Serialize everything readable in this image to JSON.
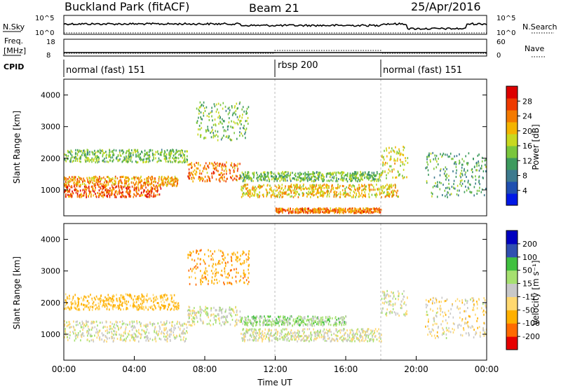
{
  "header": {
    "station": "Buckland Park (fitACF)",
    "beam": "Beam 21",
    "date": "25/Apr/2016"
  },
  "colors": {
    "power_scale": [
      "#0018e6",
      "#1f4fb0",
      "#3d7a8e",
      "#3d9a5e",
      "#7ac63d",
      "#c8d820",
      "#f4b400",
      "#f47a00",
      "#ee3a00",
      "#dd0000"
    ],
    "velocity_scale": [
      "#e60000",
      "#ff6a00",
      "#ffb000",
      "#ffd870",
      "#c8c8c8",
      "#a6e070",
      "#40c040",
      "#3050b0",
      "#0000c0"
    ]
  },
  "chart_data": [
    {
      "type": "line",
      "name": "noise-panel",
      "left_label": "N.Sky",
      "right_label": "N.Search",
      "left_ticks": [
        "10^5",
        "10^0"
      ],
      "right_ticks": [
        "10^5",
        "10^0"
      ],
      "x": [
        "00:00",
        "24:00"
      ],
      "sky_level": [
        0.45,
        0.78
      ]
    },
    {
      "type": "line",
      "name": "freq-panel",
      "left_label": "Freq.",
      "left_unit": "[MHz]",
      "right_label": "Nave",
      "left_ticks": [
        18,
        8
      ],
      "right_ticks": [
        60,
        0
      ]
    },
    {
      "type": "table",
      "name": "cpid-panel",
      "label": "CPID",
      "segments": [
        {
          "start": 0,
          "end": 12,
          "name": "normal (fast) 151"
        },
        {
          "start": 12,
          "end": 18,
          "name": "rbsp 200"
        },
        {
          "start": 18,
          "end": 24,
          "name": "normal (fast) 151"
        }
      ]
    },
    {
      "type": "heatmap",
      "name": "power-panel",
      "ylabel": "Slant Range [km]",
      "yticks": [
        1000,
        2000,
        3000,
        4000
      ],
      "ylim": [
        180,
        4500
      ],
      "xlim": [
        0,
        24
      ],
      "colorbar_label": "Power [dB]",
      "colorbar_ticks": [
        4,
        8,
        12,
        16,
        20,
        24,
        28
      ],
      "colorbar_range": [
        0,
        32
      ],
      "echo_bands": [
        {
          "t": [
            0,
            5.5
          ],
          "range": [
            800,
            1150
          ],
          "power": 26
        },
        {
          "t": [
            0,
            6.5
          ],
          "range": [
            1150,
            1450
          ],
          "power": 22
        },
        {
          "t": [
            0,
            7
          ],
          "range": [
            1900,
            2300
          ],
          "power": 14
        },
        {
          "t": [
            7,
            10
          ],
          "range": [
            1300,
            1900
          ],
          "power": 24
        },
        {
          "t": [
            7.5,
            10.5
          ],
          "range": [
            2600,
            3800
          ],
          "power": 14
        },
        {
          "t": [
            10,
            19
          ],
          "range": [
            800,
            1200
          ],
          "power": 20
        },
        {
          "t": [
            10,
            18
          ],
          "range": [
            1300,
            1600
          ],
          "power": 14
        },
        {
          "t": [
            12,
            18
          ],
          "range": [
            300,
            450
          ],
          "power": 24
        },
        {
          "t": [
            18,
            19.5
          ],
          "range": [
            1400,
            2400
          ],
          "power": 18
        },
        {
          "t": [
            20.5,
            24
          ],
          "range": [
            800,
            2200
          ],
          "power": 12
        }
      ]
    },
    {
      "type": "heatmap",
      "name": "velocity-panel",
      "ylabel": "Slant Range [km]",
      "xlabel": "Time UT",
      "xticks": [
        "00:00",
        "04:00",
        "08:00",
        "12:00",
        "16:00",
        "20:00",
        "00:00"
      ],
      "yticks": [
        1000,
        2000,
        3000,
        4000
      ],
      "ylim": [
        180,
        4500
      ],
      "xlim": [
        0,
        24
      ],
      "colorbar_label": "Velocity [m s⁻¹]",
      "colorbar_ticks": [
        -200,
        -100,
        -50,
        -15,
        15,
        50,
        100,
        200
      ],
      "echo_bands": [
        {
          "t": [
            0,
            7
          ],
          "range": [
            800,
            1450
          ],
          "velocity": 0
        },
        {
          "t": [
            0,
            6.5
          ],
          "range": [
            1800,
            2300
          ],
          "velocity": -60
        },
        {
          "t": [
            7,
            10.5
          ],
          "range": [
            2600,
            3700
          ],
          "velocity": -80
        },
        {
          "t": [
            7,
            10
          ],
          "range": [
            1300,
            1900
          ],
          "velocity": 0
        },
        {
          "t": [
            10,
            18
          ],
          "range": [
            800,
            1200
          ],
          "velocity": 0
        },
        {
          "t": [
            10,
            16
          ],
          "range": [
            1300,
            1600
          ],
          "velocity": 30
        },
        {
          "t": [
            18,
            19.5
          ],
          "range": [
            1600,
            2400
          ],
          "velocity": 0
        },
        {
          "t": [
            20.5,
            24
          ],
          "range": [
            900,
            2200
          ],
          "velocity": -20
        }
      ]
    }
  ]
}
